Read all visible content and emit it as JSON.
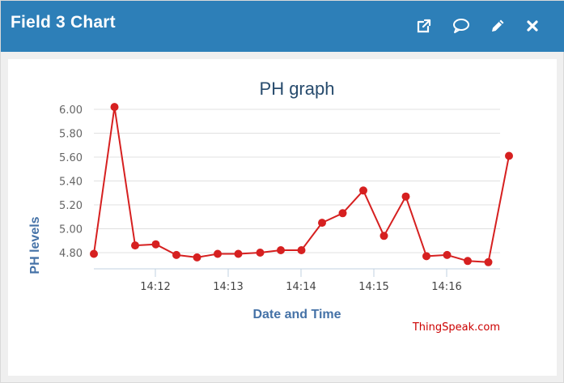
{
  "window": {
    "title": "Field 3 Chart",
    "header_color": "#2d7fb8",
    "buttons": [
      {
        "name": "external-link-icon"
      },
      {
        "name": "comment-icon"
      },
      {
        "name": "pencil-icon"
      },
      {
        "name": "close-icon"
      }
    ]
  },
  "credit": "ThingSpeak.com",
  "chart_data": {
    "type": "line",
    "title": "PH graph",
    "xlabel": "Date and Time",
    "ylabel": "PH levels",
    "color": "#d62020",
    "ylim": [
      4.7,
      6.05
    ],
    "y_ticks": [
      "6.00",
      "5.80",
      "5.60",
      "5.40",
      "5.20",
      "5.00",
      "4.80"
    ],
    "x_ticks": [
      "14:12",
      "14:13",
      "14:14",
      "14:15",
      "14:16"
    ],
    "grid": true,
    "x_times": [
      "14:11:04",
      "14:11:21",
      "14:11:38",
      "14:11:55",
      "14:12:12",
      "14:12:29",
      "14:12:46",
      "14:13:03",
      "14:13:21",
      "14:13:38",
      "14:13:55",
      "14:14:12",
      "14:14:29",
      "14:14:46",
      "14:15:03",
      "14:15:21",
      "14:15:38",
      "14:15:55",
      "14:16:12",
      "14:16:29",
      "14:16:46"
    ],
    "values": [
      4.79,
      6.02,
      4.86,
      4.87,
      4.78,
      4.76,
      4.79,
      4.79,
      4.8,
      4.82,
      4.82,
      5.05,
      5.13,
      5.32,
      4.94,
      5.27,
      4.77,
      4.78,
      4.73,
      4.72,
      5.61
    ]
  }
}
